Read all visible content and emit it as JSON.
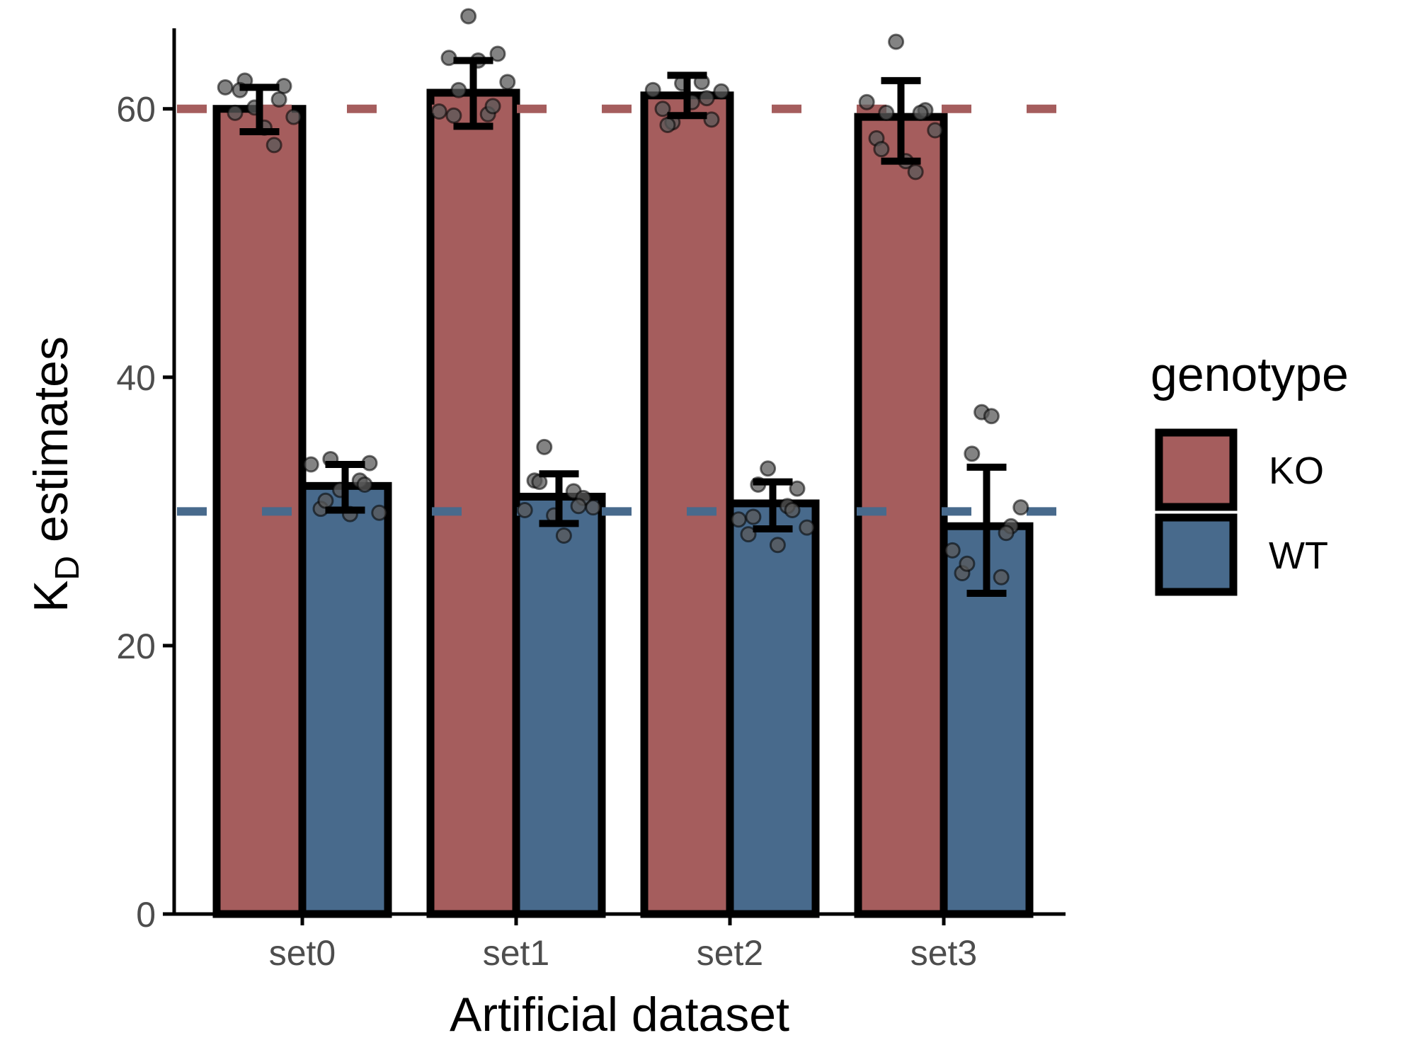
{
  "chart_data": {
    "type": "bar",
    "title": "",
    "xlabel": "Artificial dataset",
    "ylabel": {
      "main": "K",
      "subscript": "D",
      "rest": " estimates"
    },
    "categories": [
      "set0",
      "set1",
      "set2",
      "set3"
    ],
    "ylim": [
      0,
      66
    ],
    "yticks": [
      0,
      20,
      40,
      60
    ],
    "grid": false,
    "legend": {
      "title": "genotype",
      "position": "right"
    },
    "reference_lines": [
      {
        "series": "KO",
        "y": 60,
        "style": "dashed"
      },
      {
        "series": "WT",
        "y": 30,
        "style": "dashed"
      }
    ],
    "series": [
      {
        "name": "KO",
        "color": "#a55d5d",
        "values": [
          60.0,
          61.2,
          61.0,
          59.4
        ],
        "error_low": [
          58.3,
          58.7,
          59.5,
          56.1
        ],
        "error_high": [
          61.6,
          63.6,
          62.5,
          62.1
        ],
        "points": [
          [
            61.6,
            59.7,
            62.1,
            60.1,
            58.6,
            57.3,
            61.7,
            59.4,
            61.4,
            60.7
          ],
          [
            59.8,
            63.8,
            61.4,
            66.9,
            63.6,
            59.6,
            64.1,
            62.0,
            59.5,
            60.2
          ],
          [
            61.4,
            60.0,
            59.0,
            61.9,
            60.5,
            62.0,
            59.2,
            61.3,
            58.8,
            60.8
          ],
          [
            60.5,
            57.8,
            59.7,
            65.0,
            56.1,
            55.3,
            59.9,
            58.4,
            57.0,
            59.7
          ]
        ]
      },
      {
        "name": "WT",
        "color": "#486a8c",
        "values": [
          31.9,
          31.1,
          30.6,
          28.9
        ],
        "error_low": [
          30.1,
          29.1,
          28.7,
          23.9
        ],
        "error_high": [
          33.5,
          32.8,
          32.2,
          33.3
        ],
        "points": [
          [
            33.5,
            30.2,
            33.9,
            31.6,
            29.8,
            32.3,
            33.6,
            29.9,
            30.8,
            32.0
          ],
          [
            30.1,
            32.3,
            34.8,
            29.7,
            28.2,
            31.5,
            31.0,
            30.3,
            32.2,
            30.4
          ],
          [
            29.4,
            28.3,
            32.0,
            33.2,
            27.5,
            30.4,
            31.7,
            28.8,
            29.6,
            30.1
          ],
          [
            27.1,
            25.4,
            34.3,
            37.4,
            37.1,
            25.1,
            28.9,
            30.3,
            26.1,
            28.4
          ]
        ]
      }
    ]
  }
}
